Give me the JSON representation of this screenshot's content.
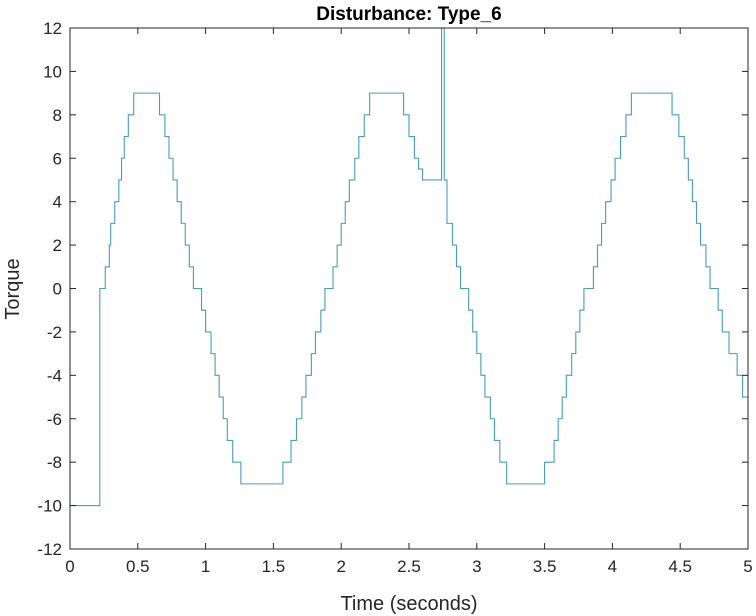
{
  "chart_data": {
    "type": "line",
    "title": "Disturbance: Type_6",
    "xlabel": "Time (seconds)",
    "ylabel": "Torque",
    "xlim": [
      0,
      5
    ],
    "ylim": [
      -12,
      12
    ],
    "xticks": [
      0,
      0.5,
      1,
      1.5,
      2,
      2.5,
      3,
      3.5,
      4,
      4.5,
      5
    ],
    "xtick_labels": [
      "0",
      "0.5",
      "1",
      "1.5",
      "2",
      "2.5",
      "3",
      "3.5",
      "4",
      "4.5",
      "5"
    ],
    "yticks": [
      -12,
      -10,
      -8,
      -6,
      -4,
      -2,
      0,
      2,
      4,
      6,
      8,
      10,
      12
    ],
    "ytick_labels": [
      "-12",
      "-10",
      "-8",
      "-6",
      "-4",
      "-2",
      "0",
      "2",
      "4",
      "6",
      "8",
      "10",
      "12"
    ],
    "grid": false,
    "series": [
      {
        "line_style": "step",
        "color": "#4a9bbd",
        "points": [
          [
            0.0,
            0
          ],
          [
            0.0,
            -10
          ],
          [
            0.22,
            -10
          ],
          [
            0.22,
            0
          ],
          [
            0.26,
            0
          ],
          [
            0.26,
            1
          ],
          [
            0.29,
            1
          ],
          [
            0.29,
            2
          ],
          [
            0.3,
            2
          ],
          [
            0.3,
            3
          ],
          [
            0.33,
            3
          ],
          [
            0.33,
            4
          ],
          [
            0.36,
            4
          ],
          [
            0.36,
            5
          ],
          [
            0.38,
            5
          ],
          [
            0.38,
            6
          ],
          [
            0.4,
            6
          ],
          [
            0.4,
            7
          ],
          [
            0.43,
            7
          ],
          [
            0.43,
            8
          ],
          [
            0.47,
            8
          ],
          [
            0.47,
            9
          ],
          [
            0.66,
            9
          ],
          [
            0.66,
            8
          ],
          [
            0.7,
            8
          ],
          [
            0.7,
            7
          ],
          [
            0.73,
            7
          ],
          [
            0.73,
            6
          ],
          [
            0.76,
            6
          ],
          [
            0.76,
            5
          ],
          [
            0.79,
            5
          ],
          [
            0.79,
            4
          ],
          [
            0.82,
            4
          ],
          [
            0.82,
            3
          ],
          [
            0.85,
            3
          ],
          [
            0.85,
            2
          ],
          [
            0.88,
            2
          ],
          [
            0.88,
            1
          ],
          [
            0.91,
            1
          ],
          [
            0.91,
            0
          ],
          [
            0.97,
            0
          ],
          [
            0.97,
            -1
          ],
          [
            1.0,
            -1
          ],
          [
            1.0,
            -2
          ],
          [
            1.04,
            -2
          ],
          [
            1.04,
            -3
          ],
          [
            1.07,
            -3
          ],
          [
            1.07,
            -4
          ],
          [
            1.1,
            -4
          ],
          [
            1.1,
            -5
          ],
          [
            1.13,
            -5
          ],
          [
            1.13,
            -6
          ],
          [
            1.16,
            -6
          ],
          [
            1.16,
            -7
          ],
          [
            1.2,
            -7
          ],
          [
            1.2,
            -8
          ],
          [
            1.26,
            -8
          ],
          [
            1.26,
            -9
          ],
          [
            1.57,
            -9
          ],
          [
            1.57,
            -8
          ],
          [
            1.63,
            -8
          ],
          [
            1.63,
            -7
          ],
          [
            1.67,
            -7
          ],
          [
            1.67,
            -6
          ],
          [
            1.71,
            -6
          ],
          [
            1.71,
            -5
          ],
          [
            1.74,
            -5
          ],
          [
            1.74,
            -4
          ],
          [
            1.78,
            -4
          ],
          [
            1.78,
            -3
          ],
          [
            1.81,
            -3
          ],
          [
            1.81,
            -2
          ],
          [
            1.85,
            -2
          ],
          [
            1.85,
            -1
          ],
          [
            1.88,
            -1
          ],
          [
            1.88,
            0
          ],
          [
            1.94,
            0
          ],
          [
            1.94,
            1
          ],
          [
            1.97,
            1
          ],
          [
            1.97,
            2
          ],
          [
            2.0,
            2
          ],
          [
            2.0,
            3
          ],
          [
            2.03,
            3
          ],
          [
            2.03,
            4
          ],
          [
            2.06,
            4
          ],
          [
            2.06,
            5
          ],
          [
            2.1,
            5
          ],
          [
            2.1,
            6
          ],
          [
            2.13,
            6
          ],
          [
            2.13,
            7
          ],
          [
            2.17,
            7
          ],
          [
            2.17,
            8
          ],
          [
            2.21,
            8
          ],
          [
            2.21,
            9
          ],
          [
            2.46,
            9
          ],
          [
            2.46,
            8
          ],
          [
            2.5,
            8
          ],
          [
            2.5,
            7
          ],
          [
            2.54,
            7
          ],
          [
            2.54,
            6
          ],
          [
            2.57,
            6
          ],
          [
            2.57,
            5.5
          ],
          [
            2.6,
            5.5
          ],
          [
            2.6,
            5
          ],
          [
            2.74,
            5
          ],
          [
            2.74,
            12.5
          ],
          [
            2.76,
            12.5
          ],
          [
            2.76,
            5
          ],
          [
            2.78,
            5
          ],
          [
            2.78,
            3
          ],
          [
            2.82,
            3
          ],
          [
            2.82,
            2
          ],
          [
            2.85,
            2
          ],
          [
            2.85,
            1
          ],
          [
            2.88,
            1
          ],
          [
            2.88,
            0
          ],
          [
            2.94,
            0
          ],
          [
            2.94,
            -1
          ],
          [
            2.97,
            -1
          ],
          [
            2.97,
            -2
          ],
          [
            3.0,
            -2
          ],
          [
            3.0,
            -3
          ],
          [
            3.03,
            -3
          ],
          [
            3.03,
            -4
          ],
          [
            3.06,
            -4
          ],
          [
            3.06,
            -5
          ],
          [
            3.1,
            -5
          ],
          [
            3.1,
            -6
          ],
          [
            3.13,
            -6
          ],
          [
            3.13,
            -7
          ],
          [
            3.17,
            -7
          ],
          [
            3.17,
            -8
          ],
          [
            3.22,
            -8
          ],
          [
            3.22,
            -9
          ],
          [
            3.5,
            -9
          ],
          [
            3.5,
            -8
          ],
          [
            3.57,
            -8
          ],
          [
            3.57,
            -7
          ],
          [
            3.6,
            -7
          ],
          [
            3.6,
            -6
          ],
          [
            3.63,
            -6
          ],
          [
            3.63,
            -5
          ],
          [
            3.66,
            -5
          ],
          [
            3.66,
            -4
          ],
          [
            3.7,
            -4
          ],
          [
            3.7,
            -3
          ],
          [
            3.73,
            -3
          ],
          [
            3.73,
            -2
          ],
          [
            3.76,
            -2
          ],
          [
            3.76,
            -1
          ],
          [
            3.79,
            -1
          ],
          [
            3.79,
            0
          ],
          [
            3.86,
            0
          ],
          [
            3.86,
            1
          ],
          [
            3.89,
            1
          ],
          [
            3.89,
            2
          ],
          [
            3.92,
            2
          ],
          [
            3.92,
            3
          ],
          [
            3.95,
            3
          ],
          [
            3.95,
            4
          ],
          [
            3.99,
            4
          ],
          [
            3.99,
            5
          ],
          [
            4.02,
            5
          ],
          [
            4.02,
            6
          ],
          [
            4.06,
            6
          ],
          [
            4.06,
            7
          ],
          [
            4.1,
            7
          ],
          [
            4.1,
            8
          ],
          [
            4.14,
            8
          ],
          [
            4.14,
            9
          ],
          [
            4.44,
            9
          ],
          [
            4.44,
            8
          ],
          [
            4.49,
            8
          ],
          [
            4.49,
            7
          ],
          [
            4.53,
            7
          ],
          [
            4.53,
            6
          ],
          [
            4.56,
            6
          ],
          [
            4.56,
            5
          ],
          [
            4.59,
            5
          ],
          [
            4.59,
            4
          ],
          [
            4.62,
            4
          ],
          [
            4.62,
            3
          ],
          [
            4.65,
            3
          ],
          [
            4.65,
            2
          ],
          [
            4.69,
            2
          ],
          [
            4.69,
            1
          ],
          [
            4.72,
            1
          ],
          [
            4.72,
            0
          ],
          [
            4.78,
            0
          ],
          [
            4.78,
            -1
          ],
          [
            4.81,
            -1
          ],
          [
            4.81,
            -2
          ],
          [
            4.86,
            -2
          ],
          [
            4.86,
            -3
          ],
          [
            4.92,
            -3
          ],
          [
            4.92,
            -4
          ],
          [
            4.96,
            -4
          ],
          [
            4.96,
            -5
          ],
          [
            5.0,
            -5
          ]
        ]
      }
    ]
  }
}
